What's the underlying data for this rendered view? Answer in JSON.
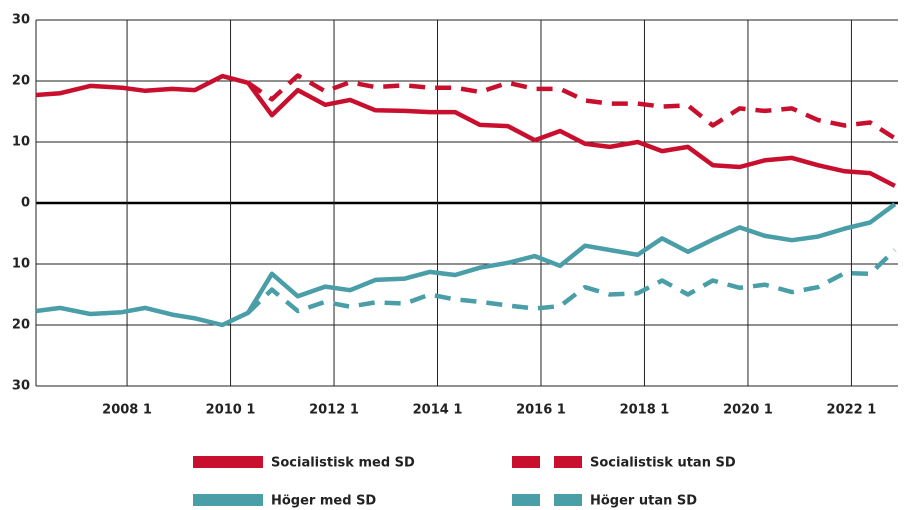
{
  "chart_data": {
    "type": "line",
    "x": [
      2006.24,
      2006.71,
      2007.29,
      2007.9,
      2008.35,
      2008.87,
      2009.31,
      2009.84,
      2010.34,
      2010.8,
      2011.3,
      2011.83,
      2012.31,
      2012.8,
      2013.37,
      2013.85,
      2014.34,
      2014.82,
      2015.36,
      2015.88,
      2016.37,
      2016.85,
      2017.33,
      2017.87,
      2018.34,
      2018.84,
      2019.32,
      2019.84,
      2020.33,
      2020.85,
      2021.35,
      2021.87,
      2022.36,
      2022.84
    ],
    "series": [
      {
        "name": "Socialistisk med SD",
        "color": "#c8102e",
        "style": "solid",
        "values": [
          17.7,
          18.0,
          19.2,
          18.9,
          18.4,
          18.7,
          18.5,
          20.8,
          19.7,
          14.4,
          18.5,
          16.1,
          16.9,
          15.2,
          15.1,
          14.9,
          14.9,
          12.8,
          12.6,
          10.3,
          11.8,
          9.7,
          9.2,
          10.0,
          8.5,
          9.2,
          6.2,
          5.9,
          7.0,
          7.4,
          6.2,
          5.2,
          4.9,
          2.8
        ]
      },
      {
        "name": "Socialistisk utan SD",
        "color": "#c8102e",
        "style": "dashed",
        "values": [
          null,
          null,
          null,
          null,
          null,
          null,
          null,
          null,
          19.7,
          17.0,
          20.9,
          18.3,
          19.8,
          19.0,
          19.3,
          18.9,
          18.9,
          18.2,
          19.7,
          18.7,
          18.7,
          16.8,
          16.3,
          16.3,
          15.8,
          16.0,
          12.7,
          15.5,
          15.1,
          15.5,
          13.6,
          12.7,
          13.2,
          10.6
        ]
      },
      {
        "name": "Höger med SD",
        "color": "#4a9ea8",
        "style": "solid",
        "values": [
          -17.7,
          -17.2,
          -18.2,
          -17.9,
          -17.2,
          -18.3,
          -18.9,
          -20.0,
          -18.0,
          -11.6,
          -15.3,
          -13.7,
          -14.3,
          -12.6,
          -12.4,
          -11.3,
          -11.8,
          -10.6,
          -9.8,
          -8.7,
          -10.3,
          -7.0,
          -7.7,
          -8.5,
          -5.8,
          -8.0,
          -6.0,
          -4.0,
          -5.4,
          -6.1,
          -5.5,
          -4.2,
          -3.2,
          -0.2
        ]
      },
      {
        "name": "Höger utan SD",
        "color": "#4a9ea8",
        "style": "dashed",
        "values": [
          null,
          null,
          null,
          null,
          null,
          null,
          null,
          null,
          -18.0,
          -14.2,
          -17.7,
          -16.2,
          -17.0,
          -16.3,
          -16.5,
          -15.0,
          -15.8,
          -16.2,
          -16.8,
          -17.3,
          -16.9,
          -13.8,
          -15.0,
          -14.8,
          -12.7,
          -15.0,
          -12.7,
          -13.9,
          -13.4,
          -14.6,
          -13.8,
          -11.5,
          -11.6,
          -7.7
        ]
      }
    ],
    "xlim": [
      2006.24,
      2022.9
    ],
    "xticks": [
      {
        "value": 2008,
        "label": "2008 1"
      },
      {
        "value": 2010,
        "label": "2010 1"
      },
      {
        "value": 2012,
        "label": "2012 1"
      },
      {
        "value": 2014,
        "label": "2014 1"
      },
      {
        "value": 2016,
        "label": "2016 1"
      },
      {
        "value": 2018,
        "label": "2018 1"
      },
      {
        "value": 2020,
        "label": "2020 1"
      },
      {
        "value": 2022,
        "label": "2022 1"
      }
    ],
    "ylim": [
      -30,
      30
    ],
    "yticks": [
      {
        "value": -30,
        "label": "30"
      },
      {
        "value": -20,
        "label": "20"
      },
      {
        "value": -10,
        "label": "10"
      },
      0,
      10,
      20,
      30
    ],
    "grid": true
  }
}
